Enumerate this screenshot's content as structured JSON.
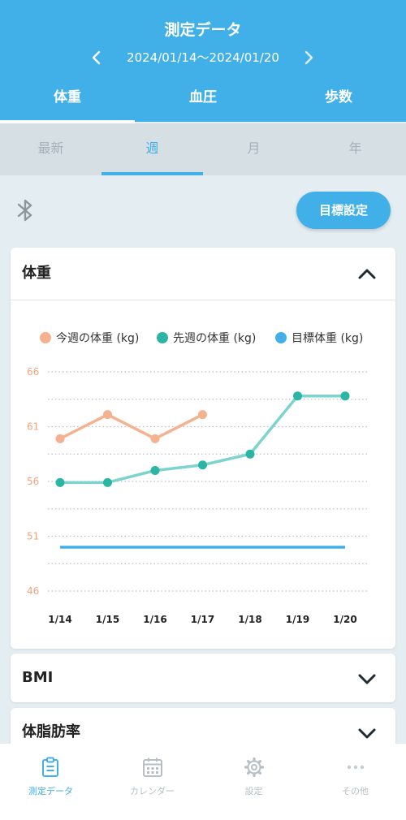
{
  "header": {
    "title": "測定データ",
    "date_range": "2024/01/14〜2024/01/20"
  },
  "tabs": [
    {
      "label": "体重",
      "active": true
    },
    {
      "label": "血圧",
      "active": false
    },
    {
      "label": "歩数",
      "active": false
    }
  ],
  "period_tabs": [
    {
      "label": "最新",
      "active": false
    },
    {
      "label": "週",
      "active": true
    },
    {
      "label": "月",
      "active": false
    },
    {
      "label": "年",
      "active": false
    }
  ],
  "toolbar": {
    "bluetooth_icon": "bluetooth-icon",
    "goal_button_label": "目標設定"
  },
  "cards": [
    {
      "title": "体重",
      "expanded": true
    },
    {
      "title": "BMI",
      "expanded": false
    },
    {
      "title": "体脂肪率",
      "expanded": false
    }
  ],
  "chart_data": {
    "type": "line",
    "categories": [
      "1/14",
      "1/15",
      "1/16",
      "1/17",
      "1/18",
      "1/19",
      "1/20"
    ],
    "ylim": [
      46,
      66
    ],
    "y_ticks": [
      "66",
      "61",
      "56",
      "51",
      "46"
    ],
    "grid": true,
    "legend_position": "top",
    "series": [
      {
        "name": "今週の体重 (kg)",
        "color": "#f5b28f",
        "values": [
          59.9,
          62.1,
          59.9,
          62.1,
          null,
          null,
          null
        ]
      },
      {
        "name": "先週の体重 (kg)",
        "color": "#2ab5a5",
        "line_color": "#7dd3ce",
        "values": [
          55.9,
          55.9,
          57.0,
          57.5,
          58.5,
          63.8,
          63.8
        ]
      },
      {
        "name": "目標体重 (kg)",
        "color": "#42b0e8",
        "values": [
          50.0,
          50.0,
          50.0,
          50.0,
          50.0,
          50.0,
          50.0
        ]
      }
    ]
  },
  "colors": {
    "primary": "#42b0e8",
    "this_week": "#f5b28f",
    "last_week": "#2ab5a5",
    "goal": "#42b0e8",
    "y_tick": "#f0a57d"
  },
  "bottom_nav": [
    {
      "label": "測定データ",
      "icon": "clipboard-icon",
      "active": true
    },
    {
      "label": "カレンダー",
      "icon": "calendar-icon",
      "active": false
    },
    {
      "label": "設定",
      "icon": "gear-icon",
      "active": false
    },
    {
      "label": "その他",
      "icon": "more-dots-icon",
      "active": false
    }
  ]
}
